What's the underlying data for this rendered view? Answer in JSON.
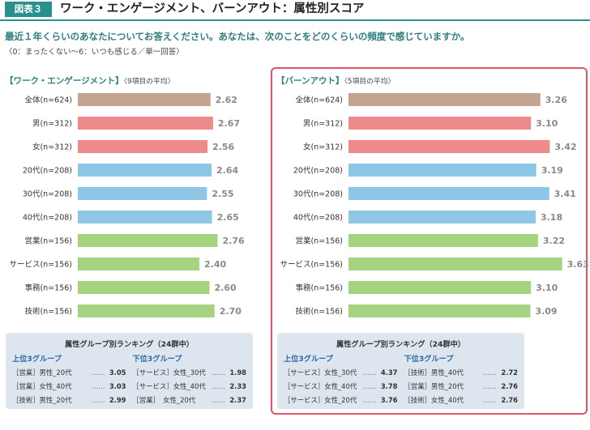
{
  "header": {
    "figure_label": "図表３",
    "title": "ワーク・エンゲージメント、バーンアウト：属性別スコア"
  },
  "question": "最近１年くらいのあなたについてお答えください。あなたは、次のことをどのくらいの頻度で感じていますか。",
  "scale_note": "〈0：まったくない〜6：いつも感じる／単一回答〉",
  "panels": {
    "left": {
      "title": "【ワーク・エンゲージメント】",
      "note": "〈9項目の平均〉"
    },
    "right": {
      "title": "【バーンアウト】",
      "note": "〈5項目の平均〉"
    }
  },
  "colors": {
    "overall": "#c4a391",
    "gender": "#ee8a8a",
    "age": "#8ec7e6",
    "job": "#a6d37f",
    "accent": "#2a8f8f",
    "frame": "#e0546a"
  },
  "chart_data": [
    {
      "type": "bar",
      "orientation": "horizontal",
      "title": "ワーク・エンゲージメント（9項目の平均）",
      "categories": [
        "全体(n=624)",
        "男(n=312)",
        "女(n=312)",
        "20代(n=208)",
        "30代(n=208)",
        "40代(n=208)",
        "営業(n=156)",
        "サービス(n=156)",
        "事務(n=156)",
        "技術(n=156)"
      ],
      "groups": [
        "overall",
        "gender",
        "gender",
        "age",
        "age",
        "age",
        "job",
        "job",
        "job",
        "job"
      ],
      "values": [
        2.62,
        2.67,
        2.56,
        2.64,
        2.55,
        2.65,
        2.76,
        2.4,
        2.6,
        2.7
      ],
      "value_labels": [
        "2.62",
        "2.67",
        "2.56",
        "2.64",
        "2.55",
        "2.65",
        "2.76",
        "2.40",
        "2.60",
        "2.70"
      ],
      "xlim": [
        0,
        3.2
      ]
    },
    {
      "type": "bar",
      "orientation": "horizontal",
      "title": "バーンアウト（5項目の平均）",
      "categories": [
        "全体(n=624)",
        "男(n=312)",
        "女(n=312)",
        "20代(n=208)",
        "30代(n=208)",
        "40代(n=208)",
        "営業(n=156)",
        "サービス(n=156)",
        "事務(n=156)",
        "技術(n=156)"
      ],
      "groups": [
        "overall",
        "gender",
        "gender",
        "age",
        "age",
        "age",
        "job",
        "job",
        "job",
        "job"
      ],
      "values": [
        3.26,
        3.1,
        3.42,
        3.19,
        3.41,
        3.18,
        3.22,
        3.63,
        3.1,
        3.09
      ],
      "value_labels": [
        "3.26",
        "3.10",
        "3.42",
        "3.19",
        "3.41",
        "3.18",
        "3.22",
        "3.63",
        "3.10",
        "3.09"
      ],
      "xlim": [
        0,
        3.8
      ]
    }
  ],
  "rankings": {
    "left": {
      "title": "属性グループ別ランキング（24群中）",
      "top_label": "上位3グループ",
      "bottom_label": "下位3グループ",
      "top": [
        {
          "group": "［営業］男性_20代",
          "value": "3.05"
        },
        {
          "group": "［営業］女性_40代",
          "value": "3.03"
        },
        {
          "group": "［技術］男性_20代",
          "value": "2.99"
        }
      ],
      "bottom": [
        {
          "group": "［サービス］女性_30代",
          "value": "1.98"
        },
        {
          "group": "［サービス］女性_40代",
          "value": "2.33"
        },
        {
          "group": "［営業］　女性_20代",
          "value": "2.37"
        }
      ]
    },
    "right": {
      "title": "属性グループ別ランキング（24群中）",
      "top_label": "上位3グループ",
      "bottom_label": "下位3グループ",
      "top": [
        {
          "group": "［サービス］女性_30代",
          "value": "4.37"
        },
        {
          "group": "［サービス］女性_40代",
          "value": "3.78"
        },
        {
          "group": "［サービス］女性_20代",
          "value": "3.76"
        }
      ],
      "bottom": [
        {
          "group": "［技術］男性_40代",
          "value": "2.72"
        },
        {
          "group": "［営業］男性_20代",
          "value": "2.76"
        },
        {
          "group": "［技術］女性_40代",
          "value": "2.76"
        }
      ]
    }
  },
  "dots": "……"
}
